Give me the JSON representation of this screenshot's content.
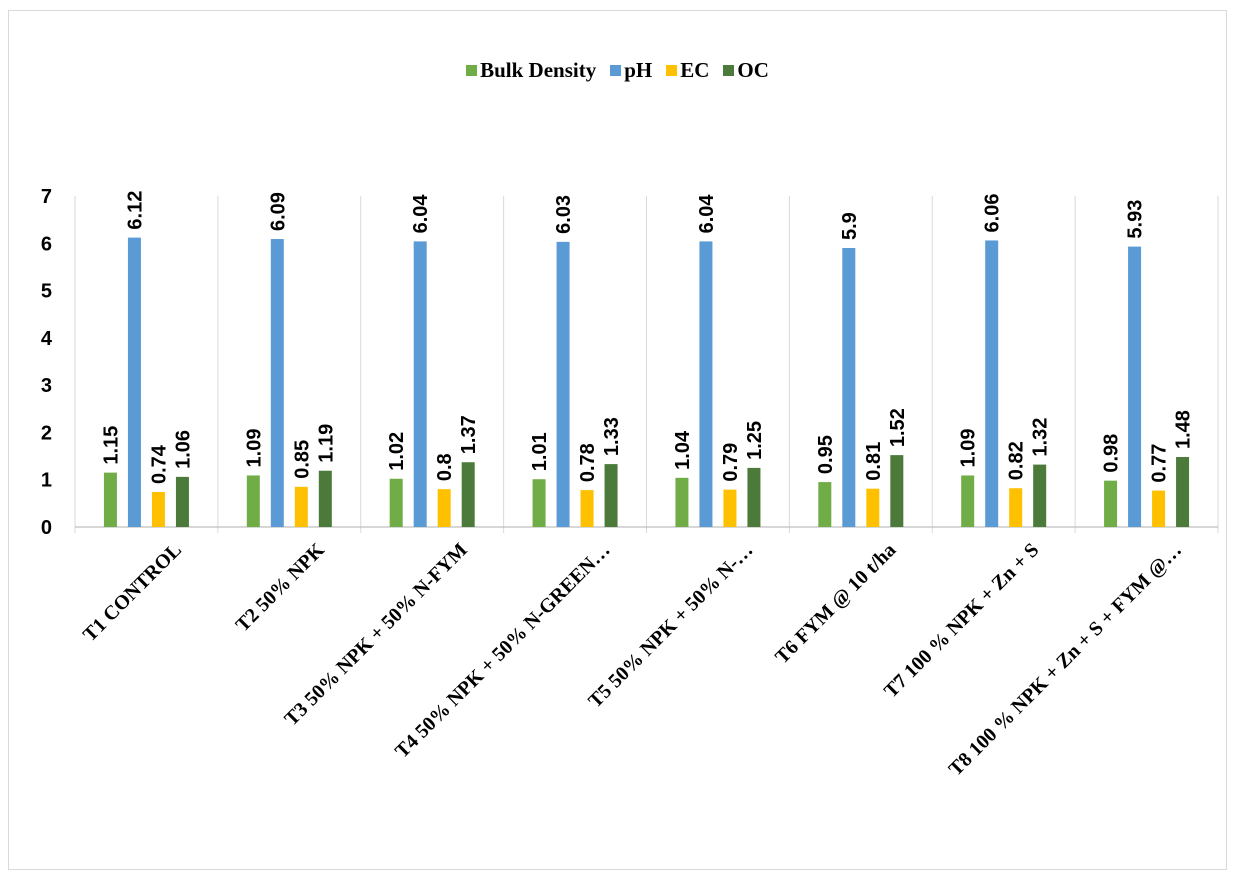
{
  "chart_data": {
    "type": "bar",
    "title": "",
    "xlabel": "",
    "ylabel": "",
    "ylim": [
      0,
      7
    ],
    "yticks": [
      "0",
      "1",
      "2",
      "3",
      "4",
      "5",
      "6",
      "7"
    ],
    "legend_position": "top",
    "grid": "vertical separators",
    "categories": [
      "T1 CONTROL",
      "T2 50% NPK",
      "T3 50% NPK + 50% N-FYM",
      "T4 50% NPK + 50% N-GREEN…",
      "T5 50% NPK + 50% N-…",
      "T6 FYM @ 10 t/ha",
      "T7 100 % NPK + Zn + S",
      "T8 100 % NPK + Zn + S + FYM @…"
    ],
    "series": [
      {
        "name": "Bulk Density",
        "color": "#70ad47",
        "values": [
          1.15,
          1.09,
          1.02,
          1.01,
          1.04,
          0.95,
          1.09,
          0.98
        ],
        "labels": [
          "1.15",
          "1.09",
          "1.02",
          "1.01",
          "1.04",
          "0.95",
          "1.09",
          "0.98"
        ]
      },
      {
        "name": "pH",
        "color": "#5b9bd5",
        "values": [
          6.12,
          6.09,
          6.04,
          6.03,
          6.04,
          5.9,
          6.06,
          5.93
        ],
        "labels": [
          "6.12",
          "6.09",
          "6.04",
          "6.03",
          "6.04",
          "5.9",
          "6.06",
          "5.93"
        ]
      },
      {
        "name": "EC",
        "color": "#ffc000",
        "values": [
          0.74,
          0.85,
          0.8,
          0.78,
          0.79,
          0.81,
          0.82,
          0.77
        ],
        "labels": [
          "0.74",
          "0.85",
          "0.8",
          "0.78",
          "0.79",
          "0.81",
          "0.82",
          "0.77"
        ]
      },
      {
        "name": "OC",
        "color": "#4b7a3a",
        "values": [
          1.06,
          1.19,
          1.37,
          1.33,
          1.25,
          1.52,
          1.32,
          1.48
        ],
        "labels": [
          "1.06",
          "1.19",
          "1.37",
          "1.33",
          "1.25",
          "1.52",
          "1.32",
          "1.48"
        ]
      }
    ]
  }
}
